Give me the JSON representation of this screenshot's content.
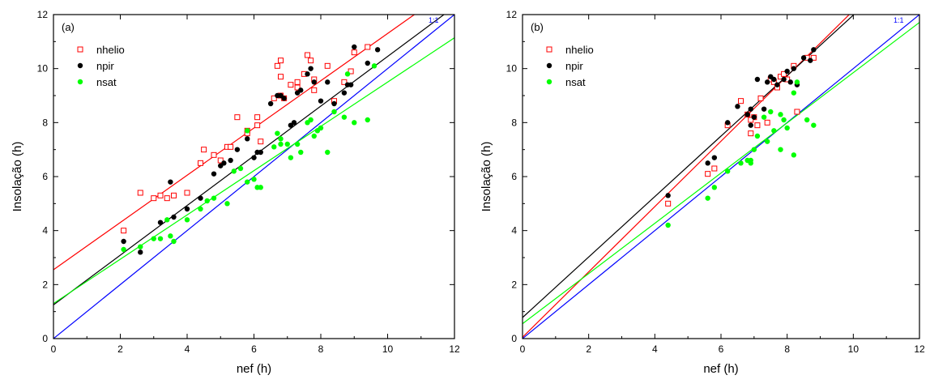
{
  "chart_data": [
    {
      "type": "scatter",
      "panel_label": "(a)",
      "xlabel": "nef (h)",
      "ylabel": "Insolação (h)",
      "xlim": [
        0,
        12
      ],
      "ylim": [
        0,
        12
      ],
      "xticks": [
        0,
        2,
        4,
        6,
        8,
        10,
        12
      ],
      "yticks": [
        0,
        2,
        4,
        6,
        8,
        10,
        12
      ],
      "legend_position": "top-left",
      "reference_line": {
        "label": "1:1",
        "color": "#0000ff"
      },
      "series": [
        {
          "name": "nhelio",
          "marker": "open-square",
          "color": "#ff0000",
          "fit": {
            "intercept": 2.55,
            "slope": 0.875
          },
          "x": [
            2.1,
            2.6,
            3.0,
            3.2,
            3.4,
            3.6,
            4.0,
            4.4,
            4.5,
            4.8,
            5.0,
            5.2,
            5.3,
            5.5,
            5.8,
            5.8,
            6.1,
            6.1,
            6.2,
            6.6,
            6.7,
            6.8,
            6.8,
            6.8,
            6.9,
            7.1,
            7.3,
            7.3,
            7.5,
            7.6,
            7.7,
            7.8,
            7.8,
            8.2,
            8.4,
            8.7,
            8.9,
            9.0,
            9.4
          ],
          "y": [
            4.0,
            5.4,
            5.2,
            5.3,
            5.2,
            5.3,
            5.4,
            6.5,
            7.0,
            6.8,
            6.6,
            7.1,
            7.1,
            8.2,
            7.7,
            7.6,
            7.9,
            8.2,
            7.3,
            8.9,
            10.1,
            10.3,
            9.7,
            9.0,
            8.9,
            9.4,
            9.5,
            9.3,
            9.8,
            10.5,
            10.3,
            9.2,
            9.6,
            10.1,
            8.8,
            9.5,
            9.9,
            10.6,
            10.8
          ]
        },
        {
          "name": "npir",
          "marker": "filled-circle",
          "color": "#000000",
          "fit": {
            "intercept": 1.25,
            "slope": 0.92
          },
          "x": [
            2.1,
            2.6,
            3.2,
            3.5,
            3.6,
            4.0,
            4.4,
            4.8,
            5.0,
            5.1,
            5.3,
            5.5,
            5.8,
            6.0,
            6.1,
            6.2,
            6.5,
            6.7,
            6.8,
            6.9,
            7.1,
            7.2,
            7.3,
            7.4,
            7.6,
            7.7,
            7.8,
            8.0,
            8.2,
            8.4,
            8.7,
            8.8,
            8.9,
            9.0,
            9.4,
            9.7
          ],
          "y": [
            3.6,
            3.2,
            4.3,
            5.8,
            4.5,
            4.8,
            5.2,
            6.1,
            6.4,
            6.5,
            6.6,
            7.0,
            7.4,
            6.7,
            6.9,
            6.9,
            8.7,
            9.0,
            9.0,
            8.9,
            7.9,
            8.0,
            9.1,
            9.2,
            9.8,
            10.0,
            9.5,
            8.8,
            9.5,
            8.7,
            9.1,
            9.4,
            9.4,
            10.8,
            10.2,
            10.7
          ]
        },
        {
          "name": "nsat",
          "marker": "filled-circle",
          "color": "#00ff00",
          "fit": {
            "intercept": 1.3,
            "slope": 0.82
          },
          "x": [
            2.1,
            2.6,
            3.0,
            3.2,
            3.4,
            3.5,
            3.6,
            4.0,
            4.4,
            4.6,
            4.8,
            5.2,
            5.4,
            5.6,
            5.8,
            6.0,
            6.1,
            6.2,
            6.6,
            6.8,
            6.8,
            7.0,
            7.1,
            7.3,
            7.4,
            7.6,
            7.8,
            7.9,
            8.0,
            8.2,
            8.4,
            8.7,
            8.8,
            9.0,
            9.4,
            9.6,
            5.8,
            6.7,
            7.7
          ],
          "y": [
            3.3,
            3.4,
            3.7,
            3.7,
            4.4,
            3.8,
            3.6,
            4.4,
            4.8,
            5.1,
            5.2,
            5.0,
            6.2,
            6.3,
            5.8,
            5.9,
            5.6,
            5.6,
            7.1,
            7.2,
            7.4,
            7.2,
            6.7,
            7.2,
            6.9,
            8.0,
            7.5,
            7.7,
            7.8,
            6.9,
            8.4,
            8.2,
            9.8,
            8.0,
            8.1,
            10.1,
            7.7,
            7.6,
            8.1
          ]
        }
      ]
    },
    {
      "type": "scatter",
      "panel_label": "(b)",
      "xlabel": "nef (h)",
      "ylabel": "Insolação (h)",
      "xlim": [
        0,
        12
      ],
      "ylim": [
        0,
        12
      ],
      "xticks": [
        0,
        2,
        4,
        6,
        8,
        10,
        12
      ],
      "yticks": [
        0,
        2,
        4,
        6,
        8,
        10,
        12
      ],
      "legend_position": "top-left",
      "reference_line": {
        "label": "1:1",
        "color": "#0000ff"
      },
      "series": [
        {
          "name": "nhelio",
          "marker": "open-square",
          "color": "#ff0000",
          "fit": {
            "intercept": 0.05,
            "slope": 1.21
          },
          "x": [
            4.4,
            5.6,
            5.8,
            6.2,
            6.6,
            6.8,
            6.9,
            7.0,
            7.1,
            7.2,
            7.4,
            7.5,
            7.6,
            7.7,
            7.8,
            7.9,
            8.0,
            8.2,
            8.3,
            8.6,
            8.8,
            6.9
          ],
          "y": [
            5.0,
            6.1,
            6.3,
            7.9,
            8.8,
            8.3,
            7.6,
            8.2,
            7.9,
            8.9,
            8.0,
            9.6,
            9.5,
            9.3,
            9.7,
            9.8,
            9.6,
            10.1,
            8.4,
            10.4,
            10.4,
            8.1
          ]
        },
        {
          "name": "npir",
          "marker": "filled-circle",
          "color": "#000000",
          "fit": {
            "intercept": 0.78,
            "slope": 1.12
          },
          "x": [
            4.4,
            5.6,
            5.8,
            6.2,
            6.5,
            6.8,
            6.9,
            7.0,
            7.1,
            7.3,
            7.4,
            7.5,
            7.6,
            7.7,
            7.9,
            8.0,
            8.1,
            8.2,
            8.3,
            8.5,
            8.7,
            8.8,
            6.9
          ],
          "y": [
            5.3,
            6.5,
            6.7,
            8.0,
            8.6,
            8.3,
            8.5,
            8.2,
            9.6,
            8.5,
            9.5,
            9.7,
            9.6,
            9.4,
            9.6,
            9.9,
            9.5,
            10.0,
            9.4,
            10.4,
            10.3,
            10.7,
            7.9
          ]
        },
        {
          "name": "nsat",
          "marker": "filled-circle",
          "color": "#00ff00",
          "fit": {
            "intercept": 0.55,
            "slope": 0.93
          },
          "x": [
            4.4,
            5.6,
            5.8,
            6.2,
            6.6,
            6.8,
            6.9,
            7.0,
            7.1,
            7.3,
            7.4,
            7.5,
            7.6,
            7.8,
            7.9,
            8.0,
            8.2,
            8.3,
            8.6,
            8.8,
            6.9,
            7.8,
            8.2
          ],
          "y": [
            4.2,
            5.2,
            5.6,
            6.2,
            6.5,
            6.6,
            6.5,
            7.0,
            7.5,
            8.2,
            7.3,
            8.4,
            7.7,
            7.0,
            8.1,
            7.8,
            6.8,
            9.5,
            8.1,
            7.9,
            6.6,
            8.3,
            9.1
          ]
        }
      ]
    }
  ]
}
